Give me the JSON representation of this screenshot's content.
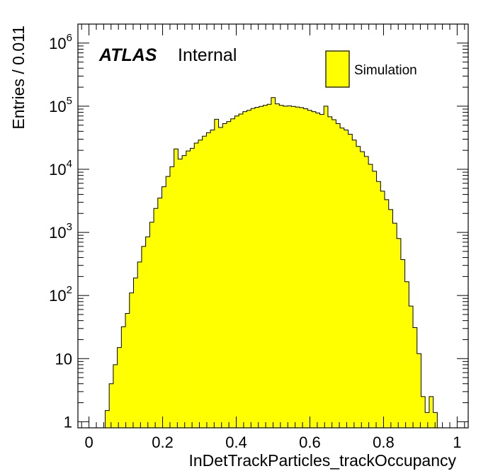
{
  "chart_data": {
    "type": "bar",
    "histogram": true,
    "title": "",
    "xlabel": "InDetTrackParticles_trackOccupancy",
    "ylabel": "Entries / 0.011",
    "xlim": [
      -0.03,
      1.03
    ],
    "ylim": [
      0.8,
      2000000
    ],
    "y_scale": "log",
    "bin_width": 0.011,
    "fill_color": "#ffff00",
    "edge_color": "#000000",
    "x_ticks": [
      {
        "value": 0,
        "label": "0"
      },
      {
        "value": 0.2,
        "label": "0.2"
      },
      {
        "value": 0.4,
        "label": "0.4"
      },
      {
        "value": 0.6,
        "label": "0.6"
      },
      {
        "value": 0.8,
        "label": "0.8"
      },
      {
        "value": 1,
        "label": "1"
      }
    ],
    "y_ticks": [
      {
        "value": 1,
        "base": "1",
        "exp": ""
      },
      {
        "value": 10,
        "base": "10",
        "exp": ""
      },
      {
        "value": 100,
        "base": "10",
        "exp": "2"
      },
      {
        "value": 1000,
        "base": "10",
        "exp": "3"
      },
      {
        "value": 10000,
        "base": "10",
        "exp": "4"
      },
      {
        "value": 100000,
        "base": "10",
        "exp": "5"
      },
      {
        "value": 1000000,
        "base": "10",
        "exp": "6"
      }
    ],
    "experiment_label": "ATLAS",
    "status_label": "Internal",
    "legend": [
      {
        "name": "Simulation",
        "color": "#ffff00"
      }
    ],
    "legend_position": "top-right",
    "series": [
      {
        "name": "Simulation",
        "x": [
          0.0495,
          0.0605,
          0.0715,
          0.0825,
          0.0935,
          0.1045,
          0.1155,
          0.1265,
          0.1375,
          0.1485,
          0.1595,
          0.1705,
          0.1815,
          0.1925,
          0.2035,
          0.2145,
          0.2255,
          0.2365,
          0.2475,
          0.2585,
          0.2695,
          0.2805,
          0.2915,
          0.3025,
          0.3135,
          0.3245,
          0.3355,
          0.3465,
          0.3575,
          0.3685,
          0.3795,
          0.3905,
          0.4015,
          0.4125,
          0.4235,
          0.4345,
          0.4455,
          0.4565,
          0.4675,
          0.4785,
          0.4895,
          0.5005,
          0.5115,
          0.5225,
          0.5335,
          0.5445,
          0.5555,
          0.5665,
          0.5775,
          0.5885,
          0.5995,
          0.6105,
          0.6215,
          0.6325,
          0.6435,
          0.6545,
          0.6655,
          0.6765,
          0.6875,
          0.6985,
          0.7095,
          0.7205,
          0.7315,
          0.7425,
          0.7535,
          0.7645,
          0.7755,
          0.7865,
          0.7975,
          0.8085,
          0.8195,
          0.8305,
          0.8415,
          0.8525,
          0.8635,
          0.8745,
          0.8855,
          0.8965,
          0.9075,
          0.9185,
          0.9295,
          0.9405
        ],
        "values": [
          1.5,
          4,
          8,
          15,
          32,
          52,
          110,
          190,
          340,
          600,
          850,
          1450,
          2400,
          3500,
          5300,
          7700,
          11000,
          21000,
          14500,
          16500,
          19500,
          21500,
          26000,
          29000,
          33500,
          38000,
          42000,
          62000,
          46000,
          53000,
          57000,
          63000,
          70000,
          75000,
          82000,
          86000,
          92000,
          96000,
          99000,
          103000,
          107000,
          137000,
          109000,
          103000,
          100000,
          101000,
          99000,
          97000,
          95000,
          91000,
          86000,
          82000,
          78000,
          74000,
          100000,
          68000,
          61000,
          53000,
          45000,
          42000,
          36000,
          29000,
          23000,
          19000,
          16000,
          12000,
          9300,
          6400,
          4500,
          3300,
          2300,
          1400,
          800,
          370,
          165,
          68,
          31,
          12,
          2.5,
          1.4,
          2.5,
          1.4
        ]
      }
    ]
  }
}
